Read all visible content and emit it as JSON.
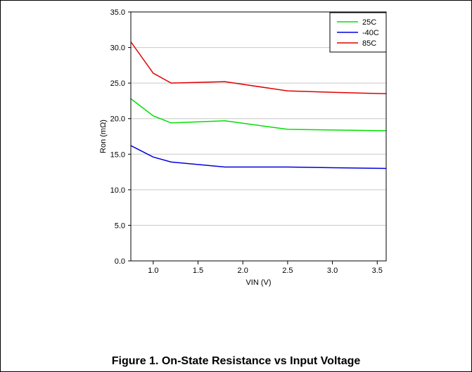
{
  "caption": "Figure 1. On-State Resistance vs Input Voltage",
  "chart_data": {
    "type": "line",
    "title": "",
    "xlabel": "VIN (V)",
    "ylabel": "Ron (mΩ)",
    "xlim": [
      0.75,
      3.6
    ],
    "ylim": [
      0.0,
      35.0
    ],
    "xticks": [
      1.0,
      1.5,
      2.0,
      2.5,
      3.0,
      3.5
    ],
    "xtick_labels": [
      "1.0",
      "1.5",
      "2.0",
      "2.5",
      "3.0",
      "3.5"
    ],
    "yticks": [
      0,
      5,
      10,
      15,
      20,
      25,
      30,
      35
    ],
    "ytick_labels": [
      "0.0",
      "5.0",
      "10.0",
      "15.0",
      "20.0",
      "25.0",
      "30.0",
      "35.0"
    ],
    "grid": "horizontal",
    "legend_position": "top-right",
    "series": [
      {
        "name": "25C",
        "color": "#00e000",
        "x": [
          0.75,
          1.0,
          1.2,
          1.8,
          2.5,
          3.0,
          3.6
        ],
        "y": [
          22.8,
          20.4,
          19.4,
          19.7,
          18.5,
          18.4,
          18.3
        ]
      },
      {
        "name": "-40C",
        "color": "#0000e0",
        "x": [
          0.75,
          1.0,
          1.2,
          1.8,
          2.5,
          3.0,
          3.6
        ],
        "y": [
          16.2,
          14.6,
          13.9,
          13.2,
          13.2,
          13.1,
          13.0
        ]
      },
      {
        "name": "85C",
        "color": "#e00000",
        "x": [
          0.75,
          1.0,
          1.2,
          1.8,
          2.5,
          3.0,
          3.6
        ],
        "y": [
          30.8,
          26.4,
          25.0,
          25.2,
          23.9,
          23.7,
          23.5
        ]
      }
    ]
  }
}
